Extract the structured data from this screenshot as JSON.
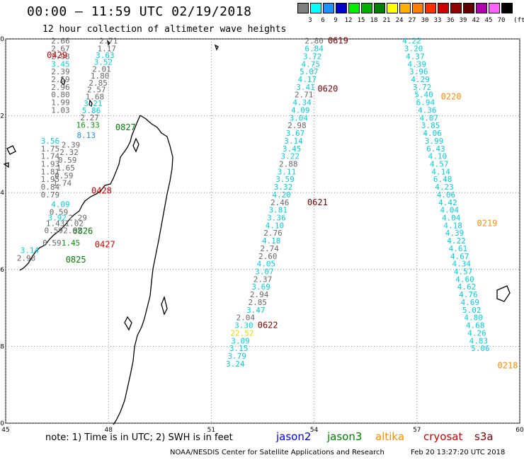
{
  "header": {
    "title": "00:00 – 11:59 UTC 02/19/2018",
    "subtitle": "12 hour collection of altimeter wave heights"
  },
  "color_scale": {
    "unit": "(ft)",
    "colors": [
      "#808080",
      "#00ffff",
      "#1e90ff",
      "#0000cd",
      "#00ee00",
      "#00b000",
      "#008000",
      "#ffff00",
      "#ffb000",
      "#ff8000",
      "#ff3000",
      "#d00000",
      "#900000",
      "#600000",
      "#b000b0",
      "#ff60ff",
      "#000000"
    ],
    "labels": [
      "3",
      "6",
      "9",
      "12",
      "15",
      "18",
      "21",
      "24",
      "27",
      "30",
      "33",
      "36",
      "39",
      "42",
      "45",
      "70"
    ]
  },
  "map": {
    "lon_range": [
      45,
      60
    ],
    "lat_range": [
      -20,
      -10
    ],
    "lon_ticks": [
      "45",
      "48",
      "51",
      "54",
      "57",
      "60"
    ],
    "lat_ticks": [
      "-10",
      "-12",
      "-14",
      "-16",
      "-18",
      "-20"
    ]
  },
  "satellite_colors": {
    "jason2": "#0000ff",
    "jason3": "#008000",
    "altika": "#ff8c00",
    "cryosat": "#d00000",
    "s3a": "#800000"
  },
  "tracks": [
    {
      "id": "t0429",
      "pass_label": "0429",
      "satellite": "cryosat",
      "label_pos": [
        46.2,
        -10.42
      ],
      "points": [
        {
          "lon": 46.6,
          "lat": -10.05,
          "swh": "2.66",
          "c": "g"
        },
        {
          "lon": 46.6,
          "lat": -10.25,
          "swh": "2.67",
          "c": "g"
        },
        {
          "lon": 46.6,
          "lat": -10.45,
          "swh": "2.98",
          "c": "g"
        },
        {
          "lon": 46.6,
          "lat": -10.65,
          "swh": "3.45",
          "c": "c"
        },
        {
          "lon": 46.6,
          "lat": -10.85,
          "swh": "2.39",
          "c": "g"
        },
        {
          "lon": 46.6,
          "lat": -11.05,
          "swh": "2.59",
          "c": "g"
        },
        {
          "lon": 46.6,
          "lat": -11.25,
          "swh": "2.96",
          "c": "g"
        },
        {
          "lon": 46.6,
          "lat": -11.45,
          "swh": "0.80",
          "c": "g"
        },
        {
          "lon": 46.6,
          "lat": -11.65,
          "swh": "1.99",
          "c": "g"
        },
        {
          "lon": 46.6,
          "lat": -11.85,
          "swh": "1.03",
          "c": "g"
        }
      ]
    },
    {
      "id": "t0827",
      "pass_label": "0827",
      "satellite": "jason3",
      "label_pos": [
        48.2,
        -12.3
      ],
      "points": [
        {
          "lon": 48.0,
          "lat": -10.05,
          "swh": "2.71",
          "c": "g"
        },
        {
          "lon": 47.95,
          "lat": -10.25,
          "swh": "1.17",
          "c": "g"
        },
        {
          "lon": 47.9,
          "lat": -10.42,
          "swh": "3.63",
          "c": "c"
        },
        {
          "lon": 47.85,
          "lat": -10.6,
          "swh": "3.52",
          "c": "c"
        },
        {
          "lon": 47.8,
          "lat": -10.78,
          "swh": "2.01",
          "c": "g"
        },
        {
          "lon": 47.75,
          "lat": -10.96,
          "swh": "1.80",
          "c": "g"
        },
        {
          "lon": 47.7,
          "lat": -11.14,
          "swh": "2.85",
          "c": "g"
        },
        {
          "lon": 47.65,
          "lat": -11.32,
          "swh": "2.57",
          "c": "g"
        },
        {
          "lon": 47.6,
          "lat": -11.5,
          "swh": "1.68",
          "c": "g"
        },
        {
          "lon": 47.55,
          "lat": -11.68,
          "swh": "3.21",
          "c": "c"
        },
        {
          "lon": 47.5,
          "lat": -11.86,
          "swh": "5.86",
          "c": "c"
        },
        {
          "lon": 47.45,
          "lat": -12.04,
          "swh": "2.27",
          "c": "g"
        },
        {
          "lon": 47.4,
          "lat": -12.24,
          "swh": "16.33",
          "c": "lg"
        },
        {
          "lon": 47.35,
          "lat": -12.5,
          "swh": "8.13",
          "c": "b"
        }
      ]
    },
    {
      "id": "t0428",
      "pass_label": "0428",
      "satellite": "cryosat",
      "label_pos": [
        47.5,
        -13.95
      ],
      "points": [
        {
          "lon": 46.3,
          "lat": -12.65,
          "swh": "3.56",
          "c": "c"
        },
        {
          "lon": 46.3,
          "lat": -12.85,
          "swh": "1.75",
          "c": "g"
        },
        {
          "lon": 46.3,
          "lat": -13.05,
          "swh": "1.74",
          "c": "g"
        },
        {
          "lon": 46.3,
          "lat": -13.25,
          "swh": "1.93",
          "c": "g"
        },
        {
          "lon": 46.3,
          "lat": -13.45,
          "swh": "1.81",
          "c": "g"
        },
        {
          "lon": 46.3,
          "lat": -13.65,
          "swh": "1.95",
          "c": "g"
        },
        {
          "lon": 46.3,
          "lat": -13.85,
          "swh": "0.84",
          "c": "g"
        },
        {
          "lon": 46.3,
          "lat": -14.05,
          "swh": "0.79",
          "c": "g"
        }
      ]
    },
    {
      "id": "t0826",
      "pass_label": "0826",
      "satellite": "jason3",
      "label_pos": [
        46.95,
        -15.0
      ],
      "points": [
        {
          "lon": 46.9,
          "lat": -12.75,
          "swh": "2.39",
          "c": "g"
        },
        {
          "lon": 46.85,
          "lat": -12.95,
          "swh": "2.32",
          "c": "g"
        },
        {
          "lon": 46.8,
          "lat": -13.15,
          "swh": "0.59",
          "c": "g"
        },
        {
          "lon": 46.75,
          "lat": -13.35,
          "swh": "1.65",
          "c": "g"
        },
        {
          "lon": 46.7,
          "lat": -13.55,
          "swh": "0.59",
          "c": "g"
        },
        {
          "lon": 46.65,
          "lat": -13.75,
          "swh": "1.74",
          "c": "g"
        },
        {
          "lon": 46.6,
          "lat": -14.3,
          "swh": "4.09",
          "c": "c"
        },
        {
          "lon": 46.55,
          "lat": -14.5,
          "swh": "0.59",
          "c": "g"
        },
        {
          "lon": 46.5,
          "lat": -14.65,
          "swh": "3.92",
          "c": "c"
        },
        {
          "lon": 46.45,
          "lat": -14.8,
          "swh": "1.43",
          "c": "g"
        },
        {
          "lon": 46.4,
          "lat": -14.98,
          "swh": "0.59",
          "c": "g"
        },
        {
          "lon": 46.35,
          "lat": -15.3,
          "swh": "0.59",
          "c": "g"
        }
      ]
    },
    {
      "id": "t0427",
      "pass_label": "0427",
      "satellite": "cryosat",
      "label_pos": [
        47.6,
        -15.35
      ],
      "points": [
        {
          "lon": 47.1,
          "lat": -14.65,
          "swh": "2.29",
          "c": "g"
        },
        {
          "lon": 47.0,
          "lat": -14.8,
          "swh": "1.02",
          "c": "g"
        },
        {
          "lon": 46.95,
          "lat": -14.98,
          "swh": "2.62",
          "c": "g"
        },
        {
          "lon": 46.9,
          "lat": -15.3,
          "swh": "1.45",
          "c": "lg"
        }
      ]
    },
    {
      "id": "t0825",
      "pass_label": "0825",
      "satellite": "jason3",
      "label_pos": [
        46.75,
        -15.75
      ],
      "points": [
        {
          "lon": 45.6,
          "lat": -15.7,
          "swh": "2.98",
          "c": "g"
        },
        {
          "lon": 45.7,
          "lat": -15.5,
          "swh": "3.14",
          "c": "c"
        }
      ]
    },
    {
      "id": "t0619",
      "pass_label": "0619",
      "satellite": "s3a",
      "label_pos": [
        54.4,
        -10.05
      ],
      "points": [
        {
          "lon": 54.0,
          "lat": -10.05,
          "swh": "2.80",
          "c": "g"
        },
        {
          "lon": 54.0,
          "lat": -10.25,
          "swh": "6.84",
          "c": "c"
        },
        {
          "lon": 53.95,
          "lat": -10.45,
          "swh": "3.72",
          "c": "c"
        },
        {
          "lon": 53.9,
          "lat": -10.65,
          "swh": "4.75",
          "c": "c"
        },
        {
          "lon": 53.85,
          "lat": -10.85,
          "swh": "5.07",
          "c": "c"
        },
        {
          "lon": 53.8,
          "lat": -11.05,
          "swh": "4.17",
          "c": "c"
        },
        {
          "lon": 53.75,
          "lat": -11.25,
          "swh": "3.41",
          "c": "c"
        }
      ]
    },
    {
      "id": "t0620",
      "pass_label": "0620",
      "satellite": "s3a",
      "label_pos": [
        54.1,
        -11.3
      ],
      "points": [
        {
          "lon": 53.7,
          "lat": -11.45,
          "swh": "2.71",
          "c": "g"
        },
        {
          "lon": 53.65,
          "lat": -11.65,
          "swh": "4.34",
          "c": "c"
        },
        {
          "lon": 53.6,
          "lat": -11.85,
          "swh": "4.09",
          "c": "c"
        },
        {
          "lon": 53.55,
          "lat": -12.05,
          "swh": "3.04",
          "c": "c"
        },
        {
          "lon": 53.5,
          "lat": -12.25,
          "swh": "2.98",
          "c": "g"
        },
        {
          "lon": 53.45,
          "lat": -12.45,
          "swh": "3.67",
          "c": "c"
        },
        {
          "lon": 53.4,
          "lat": -12.65,
          "swh": "3.14",
          "c": "c"
        },
        {
          "lon": 53.35,
          "lat": -12.85,
          "swh": "3.45",
          "c": "c"
        },
        {
          "lon": 53.3,
          "lat": -13.05,
          "swh": "3.22",
          "c": "c"
        },
        {
          "lon": 53.25,
          "lat": -13.25,
          "swh": "2.88",
          "c": "g"
        },
        {
          "lon": 53.2,
          "lat": -13.45,
          "swh": "3.11",
          "c": "c"
        },
        {
          "lon": 53.15,
          "lat": -13.65,
          "swh": "3.59",
          "c": "c"
        },
        {
          "lon": 53.1,
          "lat": -13.85,
          "swh": "3.32",
          "c": "c"
        },
        {
          "lon": 53.05,
          "lat": -14.05,
          "swh": "4.20",
          "c": "c"
        },
        {
          "lon": 53.0,
          "lat": -14.25,
          "swh": "2.46",
          "c": "g"
        }
      ]
    },
    {
      "id": "t0621",
      "pass_label": "0621",
      "satellite": "s3a",
      "label_pos": [
        53.8,
        -14.25
      ],
      "points": [
        {
          "lon": 52.95,
          "lat": -14.45,
          "swh": "3.81",
          "c": "c"
        },
        {
          "lon": 52.9,
          "lat": -14.65,
          "swh": "3.36",
          "c": "c"
        },
        {
          "lon": 52.85,
          "lat": -14.85,
          "swh": "4.10",
          "c": "c"
        },
        {
          "lon": 52.8,
          "lat": -15.05,
          "swh": "2.76",
          "c": "g"
        },
        {
          "lon": 52.75,
          "lat": -15.25,
          "swh": "4.18",
          "c": "c"
        },
        {
          "lon": 52.7,
          "lat": -15.45,
          "swh": "2.74",
          "c": "g"
        },
        {
          "lon": 52.65,
          "lat": -15.65,
          "swh": "2.60",
          "c": "g"
        },
        {
          "lon": 52.6,
          "lat": -15.85,
          "swh": "4.05",
          "c": "c"
        },
        {
          "lon": 52.55,
          "lat": -16.05,
          "swh": "3.07",
          "c": "c"
        },
        {
          "lon": 52.5,
          "lat": -16.25,
          "swh": "2.37",
          "c": "g"
        },
        {
          "lon": 52.45,
          "lat": -16.45,
          "swh": "3.69",
          "c": "c"
        },
        {
          "lon": 52.4,
          "lat": -16.65,
          "swh": "2.94",
          "c": "g"
        },
        {
          "lon": 52.35,
          "lat": -16.85,
          "swh": "2.85",
          "c": "g"
        },
        {
          "lon": 52.3,
          "lat": -17.05,
          "swh": "3.47",
          "c": "c"
        }
      ]
    },
    {
      "id": "t0622",
      "pass_label": "0622",
      "satellite": "s3a",
      "label_pos": [
        52.35,
        -17.45
      ],
      "points": [
        {
          "lon": 52.0,
          "lat": -17.25,
          "swh": "2.04",
          "c": "g"
        },
        {
          "lon": 51.95,
          "lat": -17.45,
          "swh": "3.30",
          "c": "c"
        },
        {
          "lon": 51.9,
          "lat": -17.65,
          "swh": "22.52",
          "c": "y"
        },
        {
          "lon": 51.85,
          "lat": -17.85,
          "swh": "3.09",
          "c": "c"
        },
        {
          "lon": 51.8,
          "lat": -18.05,
          "swh": "3.15",
          "c": "c"
        },
        {
          "lon": 51.75,
          "lat": -18.25,
          "swh": "3.79",
          "c": "c"
        },
        {
          "lon": 51.7,
          "lat": -18.45,
          "swh": "3.24",
          "c": "c"
        }
      ]
    },
    {
      "id": "t0220",
      "pass_label": "0220",
      "satellite": "altika",
      "label_pos": [
        57.7,
        -11.5
      ],
      "points": [
        {
          "lon": 56.85,
          "lat": -10.05,
          "swh": "4.22",
          "c": "c"
        },
        {
          "lon": 56.9,
          "lat": -10.25,
          "swh": "3.20",
          "c": "c"
        },
        {
          "lon": 56.95,
          "lat": -10.45,
          "swh": "4.37",
          "c": "c"
        },
        {
          "lon": 57.0,
          "lat": -10.65,
          "swh": "4.39",
          "c": "c"
        },
        {
          "lon": 57.05,
          "lat": -10.85,
          "swh": "3.96",
          "c": "c"
        },
        {
          "lon": 57.1,
          "lat": -11.05,
          "swh": "4.29",
          "c": "c"
        },
        {
          "lon": 57.15,
          "lat": -11.25,
          "swh": "3.72",
          "c": "c"
        },
        {
          "lon": 57.2,
          "lat": -11.45,
          "swh": "5.40",
          "c": "c"
        },
        {
          "lon": 57.25,
          "lat": -11.65,
          "swh": "6.94",
          "c": "c"
        },
        {
          "lon": 57.3,
          "lat": -11.85,
          "swh": "4.36",
          "c": "c"
        },
        {
          "lon": 57.35,
          "lat": -12.05,
          "swh": "4.07",
          "c": "c"
        },
        {
          "lon": 57.4,
          "lat": -12.25,
          "swh": "3.85",
          "c": "c"
        },
        {
          "lon": 57.45,
          "lat": -12.45,
          "swh": "4.06",
          "c": "c"
        },
        {
          "lon": 57.5,
          "lat": -12.65,
          "swh": "3.99",
          "c": "c"
        }
      ]
    },
    {
      "id": "t0219",
      "pass_label": "0219",
      "satellite": "altika",
      "label_pos": [
        58.75,
        -14.8
      ],
      "points": [
        {
          "lon": 57.55,
          "lat": -12.85,
          "swh": "6.43",
          "c": "c"
        },
        {
          "lon": 57.6,
          "lat": -13.05,
          "swh": "4.10",
          "c": "c"
        },
        {
          "lon": 57.65,
          "lat": -13.25,
          "swh": "4.57",
          "c": "c"
        },
        {
          "lon": 57.7,
          "lat": -13.45,
          "swh": "4.14",
          "c": "c"
        },
        {
          "lon": 57.75,
          "lat": -13.65,
          "swh": "6.48",
          "c": "c"
        },
        {
          "lon": 57.8,
          "lat": -13.85,
          "swh": "4.23",
          "c": "c"
        },
        {
          "lon": 57.85,
          "lat": -14.05,
          "swh": "4.06",
          "c": "c"
        },
        {
          "lon": 57.9,
          "lat": -14.25,
          "swh": "4.42",
          "c": "c"
        },
        {
          "lon": 57.95,
          "lat": -14.45,
          "swh": "4.04",
          "c": "c"
        },
        {
          "lon": 58.0,
          "lat": -14.65,
          "swh": "4.04",
          "c": "c"
        },
        {
          "lon": 58.05,
          "lat": -14.85,
          "swh": "4.18",
          "c": "c"
        },
        {
          "lon": 58.1,
          "lat": -15.05,
          "swh": "4.39",
          "c": "c"
        },
        {
          "lon": 58.15,
          "lat": -15.25,
          "swh": "4.22",
          "c": "c"
        },
        {
          "lon": 58.2,
          "lat": -15.45,
          "swh": "4.61",
          "c": "c"
        },
        {
          "lon": 58.25,
          "lat": -15.65,
          "swh": "4.67",
          "c": "c"
        },
        {
          "lon": 58.3,
          "lat": -15.85,
          "swh": "4.34",
          "c": "c"
        }
      ]
    },
    {
      "id": "t0218",
      "pass_label": "0218",
      "satellite": "altika",
      "label_pos": [
        59.35,
        -18.5
      ],
      "points": [
        {
          "lon": 58.35,
          "lat": -16.05,
          "swh": "4.57",
          "c": "c"
        },
        {
          "lon": 58.4,
          "lat": -16.25,
          "swh": "4.60",
          "c": "c"
        },
        {
          "lon": 58.45,
          "lat": -16.45,
          "swh": "4.62",
          "c": "c"
        },
        {
          "lon": 58.5,
          "lat": -16.65,
          "swh": "4.76",
          "c": "c"
        },
        {
          "lon": 58.55,
          "lat": -16.85,
          "swh": "4.69",
          "c": "c"
        },
        {
          "lon": 58.6,
          "lat": -17.05,
          "swh": "5.02",
          "c": "c"
        },
        {
          "lon": 58.65,
          "lat": -17.25,
          "swh": "4.80",
          "c": "c"
        },
        {
          "lon": 58.7,
          "lat": -17.45,
          "swh": "4.68",
          "c": "c"
        },
        {
          "lon": 58.75,
          "lat": -17.65,
          "swh": "4.26",
          "c": "c"
        },
        {
          "lon": 58.8,
          "lat": -17.85,
          "swh": "4.83",
          "c": "c"
        },
        {
          "lon": 58.85,
          "lat": -18.05,
          "swh": "5.06",
          "c": "c"
        }
      ]
    }
  ],
  "note": "note: 1) Time is in UTC; 2) SWH is in feet",
  "legend": [
    {
      "name": "jason2",
      "color": "#0000ff"
    },
    {
      "name": "jason3",
      "color": "#008000"
    },
    {
      "name": "altika",
      "color": "#ff8c00"
    },
    {
      "name": "cryosat",
      "color": "#d00000"
    },
    {
      "name": "s3a",
      "color": "#800000"
    }
  ],
  "footer": {
    "left": "NOAA/NESDIS Center for Satellite Applications and Research",
    "right": "Feb 20 13:27:20 UTC 2018"
  }
}
